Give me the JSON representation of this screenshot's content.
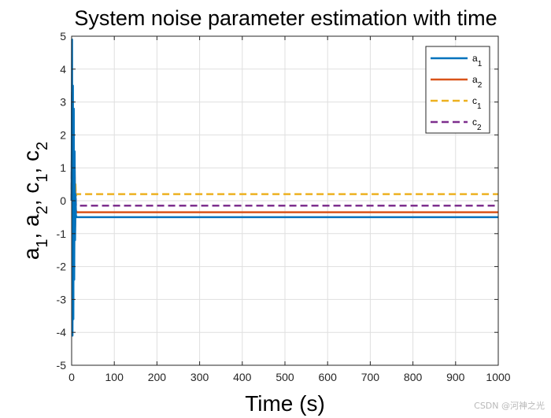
{
  "chart_data": {
    "type": "line",
    "title": "System noise parameter estimation with time",
    "xlabel": "Time (s)",
    "ylabel": "a1, a2, c1, c2",
    "xlim": [
      0,
      1000
    ],
    "ylim": [
      -5,
      5
    ],
    "xticks": [
      0,
      100,
      200,
      300,
      400,
      500,
      600,
      700,
      800,
      900,
      1000
    ],
    "yticks": [
      -5,
      -4,
      -3,
      -2,
      -1,
      0,
      1,
      2,
      3,
      4,
      5
    ],
    "grid": true,
    "legend_position": "top-right",
    "series": [
      {
        "name": "a1",
        "base": "a",
        "sub": "1",
        "color": "#0072BD",
        "dash": "solid",
        "x": [
          0,
          1,
          2,
          3,
          4,
          5,
          6,
          7,
          8,
          9,
          10,
          12,
          15,
          1000
        ],
        "y": [
          0,
          4.9,
          -4.1,
          3.5,
          -3.6,
          2.8,
          -2.4,
          1.5,
          -1.2,
          0.2,
          -0.45,
          -0.5,
          -0.5,
          -0.5
        ]
      },
      {
        "name": "a2",
        "base": "a",
        "sub": "2",
        "color": "#D95319",
        "dash": "solid",
        "x": [
          0,
          1,
          2,
          3,
          4,
          5,
          6,
          7,
          8,
          9,
          10,
          12,
          15,
          1000
        ],
        "y": [
          0,
          3.3,
          -2.5,
          2.5,
          -3.0,
          1.9,
          -1.6,
          1.0,
          -0.9,
          0.1,
          -0.3,
          -0.35,
          -0.35,
          -0.35
        ]
      },
      {
        "name": "c1",
        "base": "c",
        "sub": "1",
        "color": "#EDB120",
        "dash": "dashed",
        "x": [
          0,
          1,
          2,
          3,
          4,
          5,
          6,
          7,
          8,
          9,
          10,
          12,
          15,
          1000
        ],
        "y": [
          0,
          1.5,
          -1.5,
          2.0,
          -1.3,
          1.0,
          -0.7,
          0.9,
          -0.4,
          0.5,
          0.15,
          0.2,
          0.2,
          0.2
        ]
      },
      {
        "name": "c2",
        "base": "c",
        "sub": "2",
        "color": "#7E2F8E",
        "dash": "dashed",
        "x": [
          0,
          1,
          2,
          3,
          4,
          5,
          6,
          7,
          8,
          9,
          10,
          12,
          15,
          1000
        ],
        "y": [
          0,
          3.2,
          -1.8,
          2.6,
          -2.2,
          1.6,
          -1.3,
          0.8,
          -0.8,
          0.3,
          -0.15,
          -0.15,
          -0.15,
          -0.15
        ]
      }
    ]
  },
  "watermark": "CSDN @河神之光"
}
